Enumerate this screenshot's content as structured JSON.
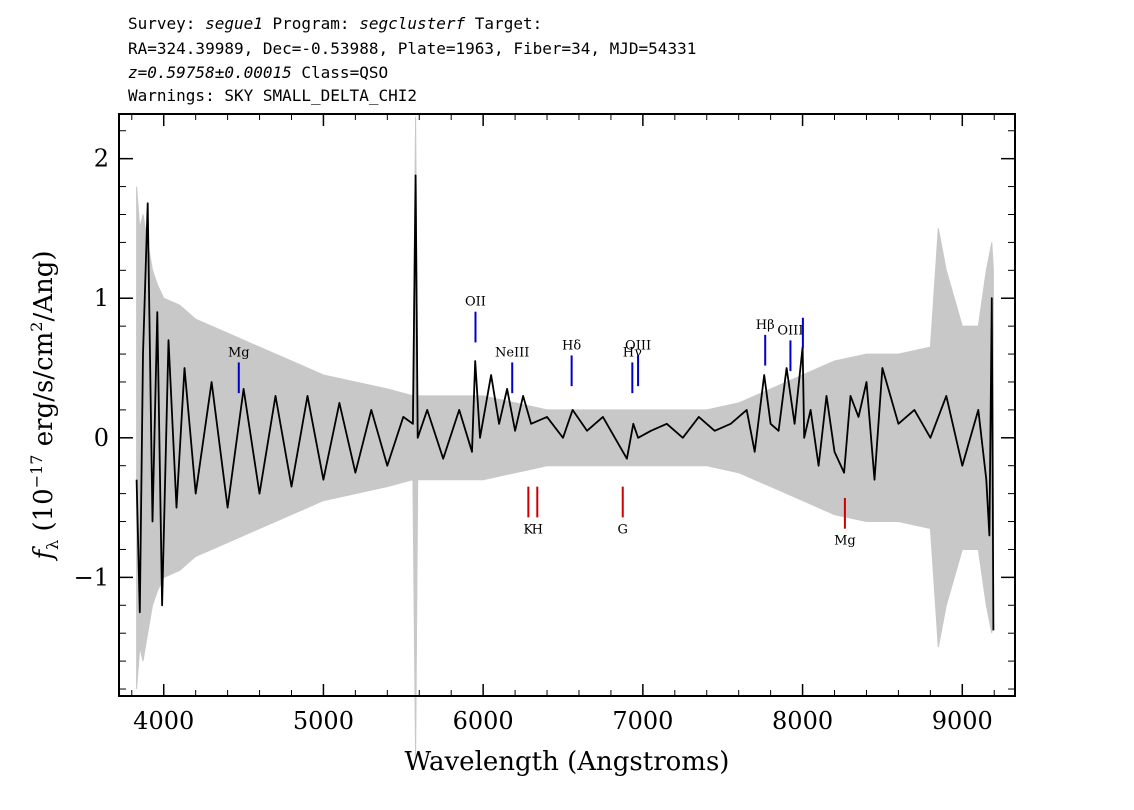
{
  "header": {
    "line1": {
      "survey_label": "Survey: ",
      "survey": "segue1",
      "program_label": " Program: ",
      "program": "segclusterf",
      "target_label": " Target:"
    },
    "line2": "RA=324.39989, Dec=-0.53988, Plate=1963, Fiber=34, MJD=54331",
    "line3": {
      "redshift": "z=0.59758±0.00015",
      "class": " Class=QSO"
    },
    "line4": "Warnings: SKY SMALL_DELTA_CHI2"
  },
  "chart_data": {
    "type": "line",
    "xlabel": "Wavelength (Angstroms)",
    "ylabel": "f_λ (10^-17 erg/s/cm²/Ang)",
    "xlim": [
      3720,
      9330
    ],
    "ylim": [
      -1.85,
      2.32
    ],
    "x_ticks": [
      4000,
      5000,
      6000,
      7000,
      8000,
      9000
    ],
    "y_ticks": [
      -1,
      0,
      1,
      2
    ],
    "series": [
      {
        "role": "flux",
        "color": "#000000",
        "x": [
          3830,
          3850,
          3870,
          3900,
          3930,
          3960,
          3990,
          4030,
          4080,
          4130,
          4200,
          4300,
          4400,
          4500,
          4600,
          4700,
          4800,
          4900,
          5000,
          5100,
          5200,
          5300,
          5400,
          5500,
          5560,
          5577,
          5590,
          5650,
          5750,
          5850,
          5930,
          5950,
          5980,
          6050,
          6100,
          6150,
          6200,
          6250,
          6300,
          6400,
          6500,
          6560,
          6650,
          6750,
          6850,
          6900,
          6940,
          6970,
          7050,
          7150,
          7250,
          7350,
          7450,
          7550,
          7650,
          7700,
          7760,
          7800,
          7850,
          7900,
          7950,
          8000,
          8010,
          8050,
          8100,
          8150,
          8200,
          8260,
          8300,
          8350,
          8400,
          8450,
          8500,
          8600,
          8700,
          8800,
          8900,
          9000,
          9100,
          9150,
          9170,
          9185,
          9195
        ],
        "y": [
          -0.3,
          -1.25,
          0.6,
          1.68,
          -0.6,
          0.9,
          -1.2,
          0.7,
          -0.5,
          0.5,
          -0.4,
          0.4,
          -0.5,
          0.35,
          -0.4,
          0.3,
          -0.35,
          0.3,
          -0.3,
          0.25,
          -0.25,
          0.2,
          -0.2,
          0.15,
          0.1,
          1.88,
          0.0,
          0.2,
          -0.15,
          0.2,
          -0.1,
          0.55,
          0.0,
          0.45,
          0.1,
          0.35,
          0.05,
          0.3,
          0.1,
          0.15,
          0.0,
          0.2,
          0.05,
          0.15,
          -0.05,
          -0.15,
          0.1,
          0.0,
          0.05,
          0.1,
          0.0,
          0.15,
          0.05,
          0.1,
          0.2,
          -0.1,
          0.45,
          0.1,
          0.05,
          0.5,
          0.1,
          0.65,
          0.0,
          0.2,
          -0.2,
          0.3,
          -0.1,
          -0.25,
          0.3,
          0.15,
          0.4,
          -0.3,
          0.5,
          0.1,
          0.2,
          0.0,
          0.3,
          -0.2,
          0.2,
          -0.3,
          -0.7,
          1.0,
          -1.38
        ]
      },
      {
        "role": "error",
        "color": "#c8c8c8",
        "x": [
          3830,
          3850,
          3870,
          3900,
          3930,
          3960,
          4000,
          4100,
          4200,
          4400,
          4600,
          4800,
          5000,
          5200,
          5400,
          5560,
          5577,
          5590,
          5800,
          6000,
          6200,
          6400,
          6600,
          6800,
          7000,
          7200,
          7400,
          7600,
          7800,
          8000,
          8200,
          8400,
          8600,
          8800,
          8850,
          8900,
          9000,
          9100,
          9150,
          9185,
          9195
        ],
        "half_width": [
          1.8,
          1.5,
          1.6,
          1.4,
          1.2,
          1.1,
          1.0,
          0.95,
          0.85,
          0.75,
          0.65,
          0.55,
          0.45,
          0.4,
          0.35,
          0.3,
          2.3,
          0.3,
          0.3,
          0.3,
          0.25,
          0.2,
          0.2,
          0.2,
          0.2,
          0.2,
          0.2,
          0.25,
          0.35,
          0.45,
          0.55,
          0.6,
          0.6,
          0.65,
          1.5,
          1.2,
          0.8,
          0.8,
          1.2,
          1.4,
          1.2
        ]
      }
    ],
    "emission_lines": [
      {
        "label": "Mg",
        "wavelength": 4470,
        "color": "#0000cc"
      },
      {
        "label": "OII",
        "wavelength": 5952,
        "color": "#0000cc"
      },
      {
        "label": "NeIII",
        "wavelength": 6182,
        "color": "#0000cc"
      },
      {
        "label": "Hδ",
        "wavelength": 6554,
        "color": "#0000cc"
      },
      {
        "label": "Hγ",
        "wavelength": 6934,
        "color": "#0000cc"
      },
      {
        "label": "OIII",
        "wavelength": 6970,
        "color": "#0000cc"
      },
      {
        "label": "Hβ",
        "wavelength": 7766,
        "color": "#0000cc"
      },
      {
        "label": "OIII",
        "wavelength": 7924,
        "color": "#0000cc"
      },
      {
        "label": "",
        "wavelength": 8002,
        "color": "#0000cc"
      }
    ],
    "absorption_lines": [
      {
        "label": "K",
        "wavelength": 6283,
        "color": "#cc0000"
      },
      {
        "label": "H",
        "wavelength": 6339,
        "color": "#cc0000"
      },
      {
        "label": "G",
        "wavelength": 6874,
        "color": "#cc0000"
      },
      {
        "label": "Mg",
        "wavelength": 8265,
        "color": "#cc0000"
      }
    ]
  }
}
